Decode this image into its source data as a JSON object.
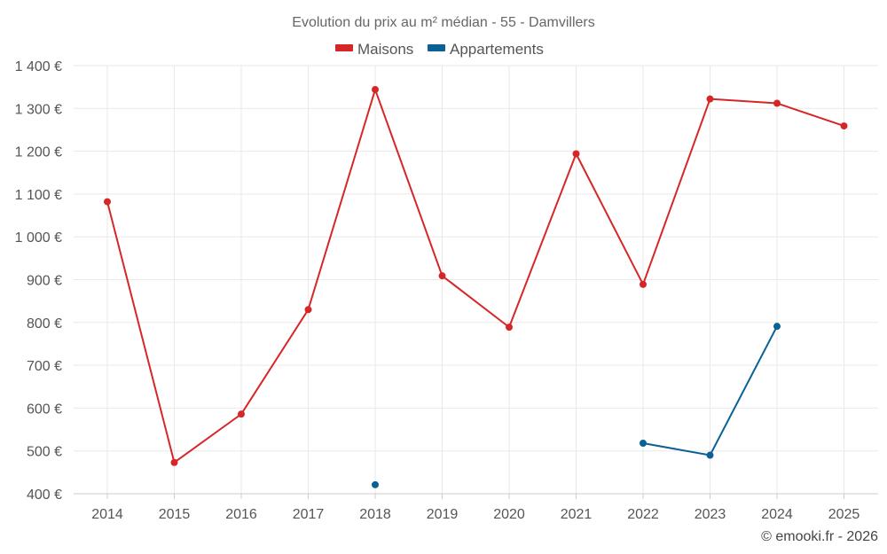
{
  "chart_data": {
    "type": "line",
    "title": "Evolution du prix au m² médian - 55 - Damvillers",
    "categories": [
      "2014",
      "2015",
      "2016",
      "2017",
      "2018",
      "2019",
      "2020",
      "2021",
      "2022",
      "2023",
      "2024",
      "2025"
    ],
    "series": [
      {
        "name": "Maisons",
        "color": "#d62728",
        "values": [
          1082,
          473,
          586,
          830,
          1344,
          909,
          789,
          1194,
          889,
          1322,
          1312,
          1259
        ]
      },
      {
        "name": "Appartements",
        "color": "#0b6196",
        "values": [
          null,
          null,
          null,
          null,
          421,
          null,
          null,
          null,
          518,
          490,
          791,
          null
        ]
      }
    ],
    "yticks": [
      "400 €",
      "500 €",
      "600 €",
      "700 €",
      "800 €",
      "900 €",
      "1 000 €",
      "1 100 €",
      "1 200 €",
      "1 300 €",
      "1 400 €"
    ],
    "ylim": [
      400,
      1400
    ],
    "grid": true,
    "legend_position": "top-center",
    "credit": "© emooki.fr - 2026"
  }
}
